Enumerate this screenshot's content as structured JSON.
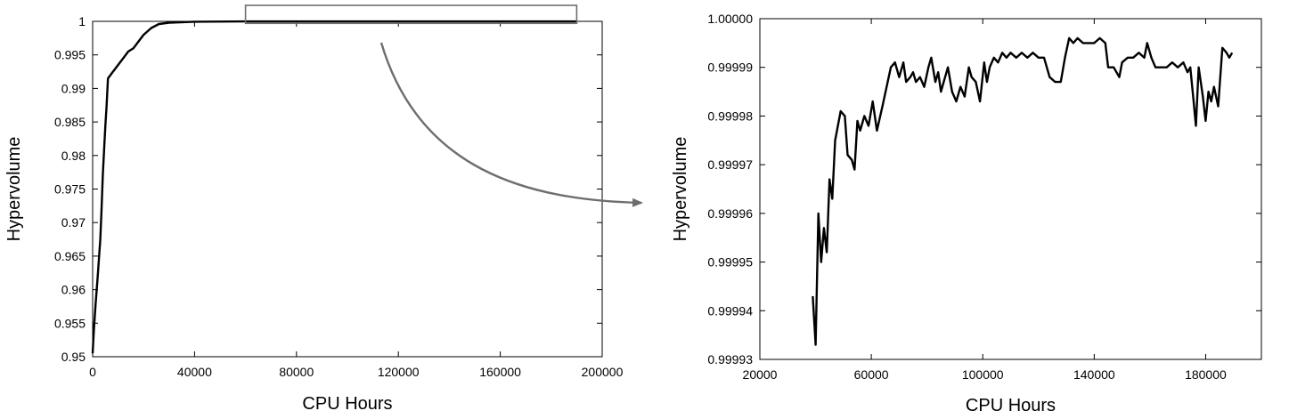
{
  "chart_data": [
    {
      "type": "line",
      "xlabel": "CPU Hours",
      "ylabel": "Hypervolume",
      "xlim": [
        0,
        200000
      ],
      "ylim": [
        0.95,
        1.0
      ],
      "xticks": [
        0,
        40000,
        80000,
        120000,
        160000,
        200000
      ],
      "xtick_labels": [
        "0",
        "40000",
        "80000",
        "120000",
        "160000",
        "200000"
      ],
      "yticks": [
        0.95,
        0.955,
        0.96,
        0.965,
        0.97,
        0.975,
        0.98,
        0.985,
        0.99,
        0.995,
        1.0
      ],
      "ytick_labels": [
        "0.95",
        "0.955",
        "0.96",
        "0.965",
        "0.97",
        "0.975",
        "0.98",
        "0.985",
        "0.99",
        "0.995",
        "1"
      ],
      "grid": false,
      "series": [
        {
          "points": [
            [
              0,
              0.9505
            ],
            [
              500,
              0.954
            ],
            [
              1200,
              0.958
            ],
            [
              2000,
              0.962
            ],
            [
              3000,
              0.9675
            ],
            [
              3500,
              0.972
            ],
            [
              4000,
              0.977
            ],
            [
              4500,
              0.981
            ],
            [
              5000,
              0.9845
            ],
            [
              5500,
              0.9875
            ],
            [
              6000,
              0.9915
            ],
            [
              8000,
              0.9925
            ],
            [
              10000,
              0.9935
            ],
            [
              12000,
              0.9945
            ],
            [
              14000,
              0.9955
            ],
            [
              16000,
              0.996
            ],
            [
              18000,
              0.997
            ],
            [
              20000,
              0.998
            ],
            [
              23000,
              0.999
            ],
            [
              26000,
              0.9996
            ],
            [
              30000,
              0.9998
            ],
            [
              40000,
              0.99995
            ],
            [
              60000,
              0.99999
            ],
            [
              100000,
              0.99999
            ],
            [
              140000,
              0.99999
            ],
            [
              190000,
              0.99999
            ]
          ]
        }
      ],
      "zoom_box": {
        "xmin": 60000,
        "xmax": 190000,
        "ymin": 0.9997,
        "ymax": 1.0
      }
    },
    {
      "type": "line",
      "xlabel": "CPU Hours",
      "ylabel": "Hypervolume",
      "xlim": [
        20000,
        200000
      ],
      "ylim": [
        0.99993,
        1.0
      ],
      "xticks": [
        20000,
        60000,
        100000,
        140000,
        180000
      ],
      "xtick_labels": [
        "20000",
        "60000",
        "100000",
        "140000",
        "180000"
      ],
      "yticks": [
        0.99993,
        0.99994,
        0.99995,
        0.99996,
        0.99997,
        0.99998,
        0.99999,
        1.0
      ],
      "ytick_labels": [
        "0.99993",
        "0.99994",
        "0.99995",
        "0.99996",
        "0.99997",
        "0.99998",
        "0.99999",
        "1.00000"
      ],
      "grid": false,
      "series": [
        {
          "points": [
            [
              39000,
              0.999943
            ],
            [
              40000,
              0.999933
            ],
            [
              41000,
              0.99996
            ],
            [
              42000,
              0.99995
            ],
            [
              43000,
              0.999957
            ],
            [
              44000,
              0.999952
            ],
            [
              45000,
              0.999967
            ],
            [
              46000,
              0.999963
            ],
            [
              47000,
              0.999975
            ],
            [
              48000,
              0.999978
            ],
            [
              49000,
              0.999981
            ],
            [
              50500,
              0.99998
            ],
            [
              51500,
              0.999972
            ],
            [
              53000,
              0.999971
            ],
            [
              54000,
              0.999969
            ],
            [
              55000,
              0.999979
            ],
            [
              56000,
              0.999977
            ],
            [
              57500,
              0.99998
            ],
            [
              59000,
              0.999978
            ],
            [
              60500,
              0.999983
            ],
            [
              62000,
              0.999977
            ],
            [
              64000,
              0.999982
            ],
            [
              65500,
              0.999986
            ],
            [
              67000,
              0.99999
            ],
            [
              68500,
              0.999991
            ],
            [
              70000,
              0.999988
            ],
            [
              71500,
              0.999991
            ],
            [
              72500,
              0.999987
            ],
            [
              74000,
              0.999988
            ],
            [
              75000,
              0.999989
            ],
            [
              76000,
              0.999987
            ],
            [
              77500,
              0.999988
            ],
            [
              79000,
              0.999986
            ],
            [
              80500,
              0.99999
            ],
            [
              81500,
              0.999992
            ],
            [
              83000,
              0.999987
            ],
            [
              84000,
              0.999989
            ],
            [
              85000,
              0.999985
            ],
            [
              86000,
              0.999987
            ],
            [
              87500,
              0.99999
            ],
            [
              89000,
              0.999985
            ],
            [
              90500,
              0.999983
            ],
            [
              92000,
              0.999986
            ],
            [
              93500,
              0.999984
            ],
            [
              95000,
              0.99999
            ],
            [
              96000,
              0.999988
            ],
            [
              97500,
              0.999987
            ],
            [
              99000,
              0.999983
            ],
            [
              100500,
              0.999991
            ],
            [
              101500,
              0.999987
            ],
            [
              102500,
              0.99999
            ],
            [
              104000,
              0.999992
            ],
            [
              105500,
              0.999991
            ],
            [
              107000,
              0.999993
            ],
            [
              108500,
              0.999992
            ],
            [
              110000,
              0.999993
            ],
            [
              112000,
              0.999992
            ],
            [
              114000,
              0.999993
            ],
            [
              116000,
              0.999992
            ],
            [
              118000,
              0.999993
            ],
            [
              120000,
              0.999992
            ],
            [
              122000,
              0.999992
            ],
            [
              124000,
              0.999988
            ],
            [
              126000,
              0.999987
            ],
            [
              128000,
              0.999987
            ],
            [
              129500,
              0.999992
            ],
            [
              131000,
              0.999996
            ],
            [
              132500,
              0.999995
            ],
            [
              134000,
              0.999996
            ],
            [
              136000,
              0.999995
            ],
            [
              138000,
              0.999995
            ],
            [
              140000,
              0.999995
            ],
            [
              142000,
              0.999996
            ],
            [
              144000,
              0.999995
            ],
            [
              145000,
              0.99999
            ],
            [
              147000,
              0.99999
            ],
            [
              149000,
              0.999988
            ],
            [
              150000,
              0.999991
            ],
            [
              152000,
              0.999992
            ],
            [
              154000,
              0.999992
            ],
            [
              156000,
              0.999993
            ],
            [
              158000,
              0.999992
            ],
            [
              159000,
              0.999995
            ],
            [
              160500,
              0.999992
            ],
            [
              162000,
              0.99999
            ],
            [
              164000,
              0.99999
            ],
            [
              166000,
              0.99999
            ],
            [
              168000,
              0.999991
            ],
            [
              170000,
              0.99999
            ],
            [
              172000,
              0.999991
            ],
            [
              173500,
              0.999989
            ],
            [
              174500,
              0.99999
            ],
            [
              175500,
              0.999984
            ],
            [
              176500,
              0.999978
            ],
            [
              177500,
              0.99999
            ],
            [
              179000,
              0.999984
            ],
            [
              180000,
              0.999979
            ],
            [
              181000,
              0.999985
            ],
            [
              182000,
              0.999983
            ],
            [
              183000,
              0.999986
            ],
            [
              184500,
              0.999982
            ],
            [
              186000,
              0.999994
            ],
            [
              187500,
              0.999993
            ],
            [
              188500,
              0.999992
            ],
            [
              189500,
              0.999993
            ]
          ]
        }
      ]
    }
  ]
}
